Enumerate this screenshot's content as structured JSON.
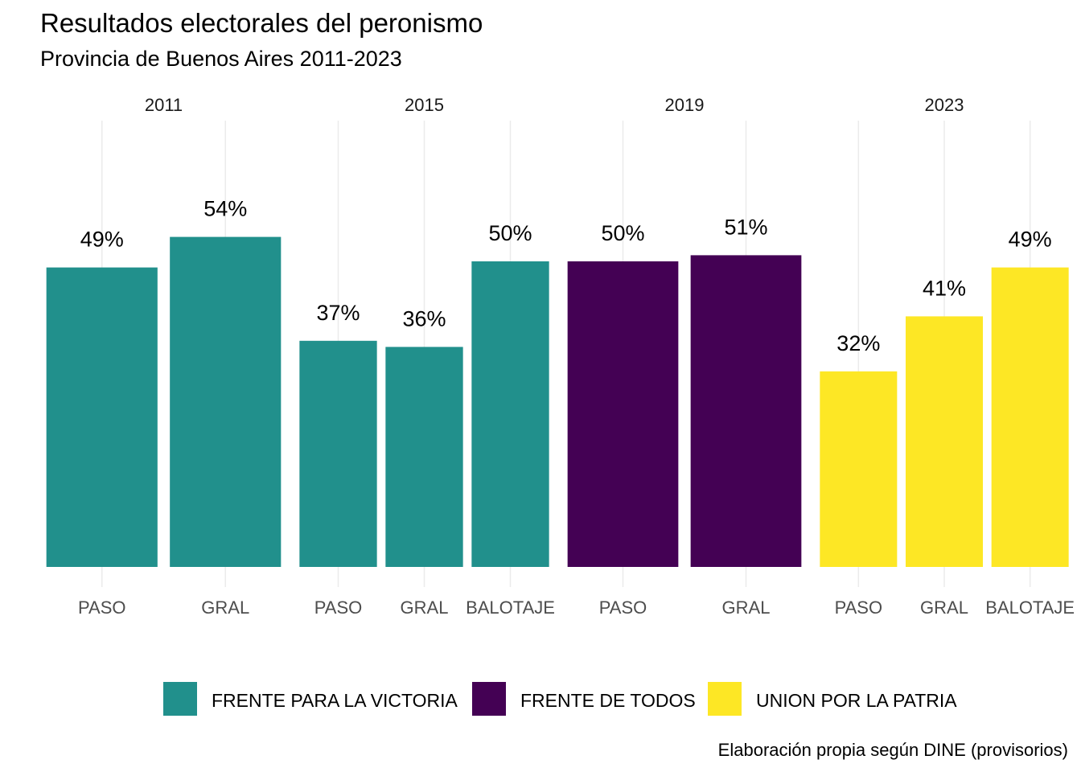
{
  "title": "Resultados electorales del peronismo",
  "subtitle": "Provincia de Buenos Aires 2011-2023",
  "caption": "Elaboración propia según DINE (provisorios)",
  "colors": {
    "FRENTE PARA LA VICTORIA": "#21908C",
    "FRENTE DE TODOS": "#440154",
    "UNION POR LA PATRIA": "#FDE725",
    "grid": "#ebebeb"
  },
  "legend": [
    {
      "label": "FRENTE PARA LA VICTORIA",
      "color": "#21908C"
    },
    {
      "label": "FRENTE DE TODOS",
      "color": "#440154"
    },
    {
      "label": "UNION POR LA PATRIA",
      "color": "#FDE725"
    }
  ],
  "chart_data": {
    "type": "bar",
    "facet_by": "year",
    "ylim": [
      0,
      60
    ],
    "grid": true,
    "legend_position": "bottom",
    "facets": [
      {
        "year": "2011",
        "categories": [
          "PASO",
          "GRAL"
        ],
        "values": [
          49,
          54
        ],
        "labels": [
          "49%",
          "54%"
        ],
        "series": "FRENTE PARA LA VICTORIA"
      },
      {
        "year": "2015",
        "categories": [
          "PASO",
          "GRAL",
          "BALOTAJE"
        ],
        "values": [
          37,
          36,
          50
        ],
        "labels": [
          "37%",
          "36%",
          "50%"
        ],
        "series": "FRENTE PARA LA VICTORIA"
      },
      {
        "year": "2019",
        "categories": [
          "PASO",
          "GRAL"
        ],
        "values": [
          50,
          51
        ],
        "labels": [
          "50%",
          "51%"
        ],
        "series": "FRENTE DE TODOS"
      },
      {
        "year": "2023",
        "categories": [
          "PASO",
          "GRAL",
          "BALOTAJE"
        ],
        "values": [
          32,
          41,
          49
        ],
        "labels": [
          "32%",
          "41%",
          "49%"
        ],
        "series": "UNION POR LA PATRIA"
      }
    ]
  }
}
